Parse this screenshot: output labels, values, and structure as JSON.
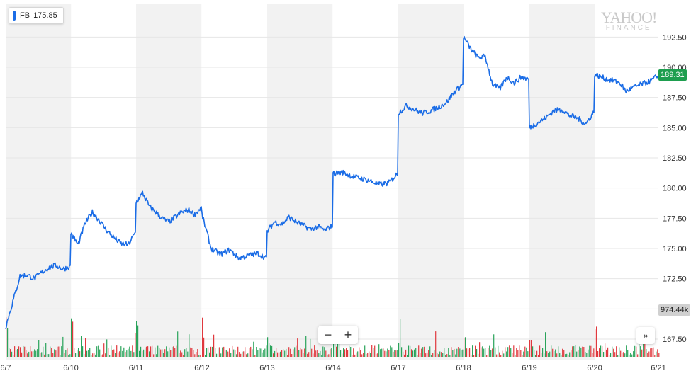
{
  "legend": {
    "symbol": "FB",
    "value": "175.85",
    "color": "#1a6ce6"
  },
  "watermark": {
    "line1": "YAHOO!",
    "line2": "FINANCE"
  },
  "controls": {
    "zoom_out": "−",
    "zoom_in": "+",
    "expand": "»"
  },
  "colors": {
    "line": "#1a6ce6",
    "band": "#f2f2f2",
    "grid": "#e6e6e6",
    "vol_up": "#29a35a",
    "vol_down": "#e0393e",
    "price_badge": "#1e9e4f",
    "vol_badge": "#d0d0d0"
  },
  "chart_data": {
    "type": "line",
    "title": "",
    "xlabel": "",
    "ylabel": "",
    "x_ticks": [
      "6/7",
      "6/10",
      "6/11",
      "6/12",
      "6/13",
      "6/14",
      "6/17",
      "6/18",
      "6/19",
      "6/20",
      "6/21"
    ],
    "y_ticks": [
      "167.50",
      "170.00",
      "172.50",
      "175.00",
      "177.50",
      "180.00",
      "182.50",
      "185.00",
      "187.50",
      "190.00",
      "192.50"
    ],
    "ylim": [
      166.8,
      194.4
    ],
    "grid": true,
    "current_price": "189.31",
    "current_volume": "974.44k",
    "series": [
      {
        "symbol": "FB",
        "days": [
          {
            "date": "6/7",
            "points": [
              168.5,
              170.6,
              172.7,
              172.8,
              172.5,
              173.0,
              173.4,
              173.6,
              173.3,
              173.5
            ]
          },
          {
            "date": "6/10",
            "points": [
              176.3,
              175.3,
              177.1,
              178.0,
              177.3,
              176.5,
              175.9,
              175.4,
              175.3,
              176.3
            ]
          },
          {
            "date": "6/11",
            "points": [
              178.8,
              179.6,
              178.5,
              178.0,
              177.5,
              177.2,
              177.6,
              178.0,
              178.2,
              177.8,
              178.4
            ]
          },
          {
            "date": "6/12",
            "points": [
              177.8,
              175.0,
              174.5,
              174.9,
              174.2,
              174.4,
              174.6,
              174.2
            ]
          },
          {
            "date": "6/13",
            "points": [
              176.4,
              177.2,
              177.0,
              177.6,
              177.2,
              176.9,
              176.6,
              176.8,
              176.5,
              176.9
            ]
          },
          {
            "date": "6/14",
            "points": [
              181.2,
              181.3,
              181.0,
              180.8,
              180.6,
              180.3,
              180.4,
              181.2
            ]
          },
          {
            "date": "6/17",
            "points": [
              186.2,
              186.8,
              186.5,
              186.2,
              186.4,
              186.7,
              187.1,
              188.0,
              188.6
            ]
          },
          {
            "date": "6/18",
            "points": [
              192.5,
              191.5,
              190.8,
              190.9,
              188.6,
              188.2,
              189.2,
              188.7,
              189.2,
              189.0
            ]
          },
          {
            "date": "6/19",
            "points": [
              185.0,
              185.4,
              185.8,
              186.4,
              186.5,
              186.0,
              185.8,
              185.3,
              186.3
            ]
          },
          {
            "date": "6/20",
            "points": [
              189.4,
              189.2,
              189.0,
              188.9,
              188.7,
              188.0,
              188.3,
              188.5,
              188.7,
              188.9,
              189.3
            ]
          }
        ]
      }
    ],
    "volume_ylim": [
      0,
      1
    ]
  }
}
